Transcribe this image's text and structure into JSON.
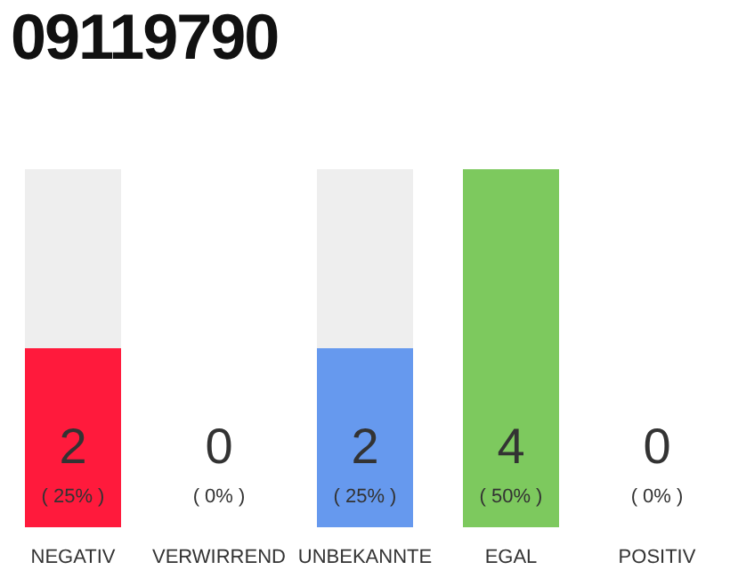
{
  "chart_data": {
    "type": "bar",
    "title": "09119790",
    "categories": [
      "NEGATIV",
      "VERWIRREND",
      "UNBEKANNTE",
      "EGAL",
      "POSITIV"
    ],
    "values": [
      25,
      0,
      25,
      50,
      0
    ],
    "colors": [
      "#ff1a3c",
      "#eeeeee",
      "#6699ee",
      "#7dc95e",
      "#eeeeee"
    ],
    "value_labels": [
      "2\n( 25% )",
      "0\n( 0% )",
      "2\n( 25% )",
      "4\n( 50% )",
      "0\n( 0% )"
    ],
    "tick_labels": "x"
  }
}
